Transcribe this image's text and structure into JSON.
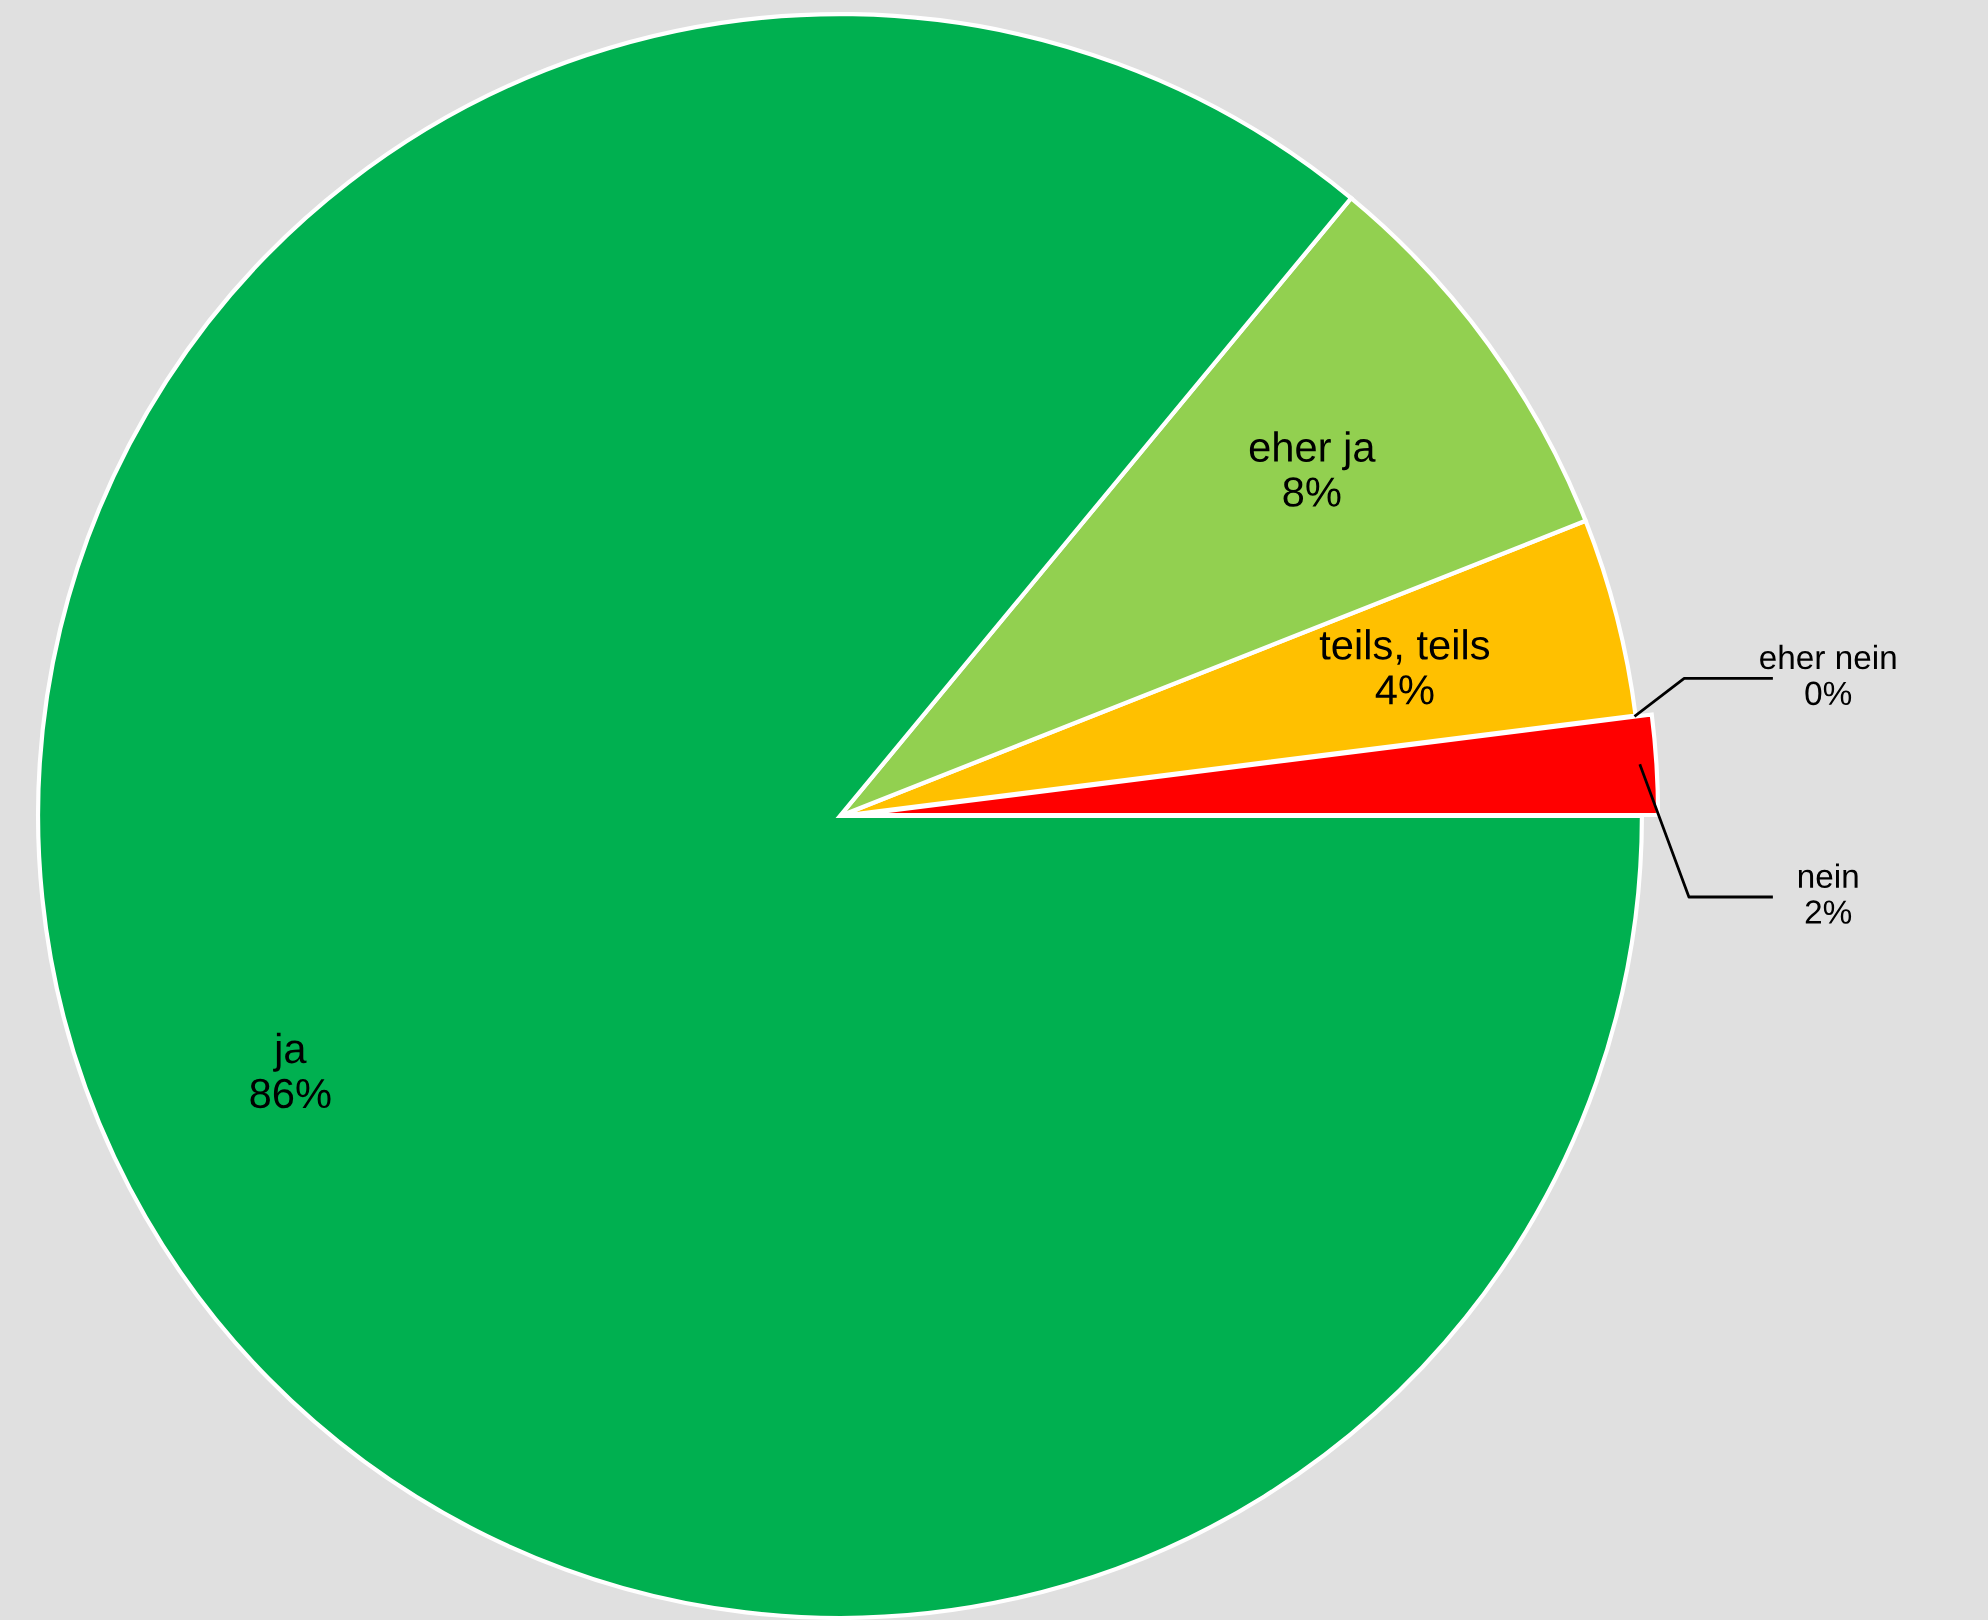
{
  "chart_data": {
    "type": "pie",
    "categories": [
      "nein",
      "eher nein",
      "teils, teils",
      "eher ja",
      "ja"
    ],
    "values": [
      2,
      0,
      4,
      8,
      86
    ],
    "value_labels": [
      "2%",
      "0%",
      "4%",
      "8%",
      "86%"
    ],
    "colors": [
      "#ff0000",
      "#c00000",
      "#ffc000",
      "#92d050",
      "#00b050"
    ],
    "legend": false
  }
}
